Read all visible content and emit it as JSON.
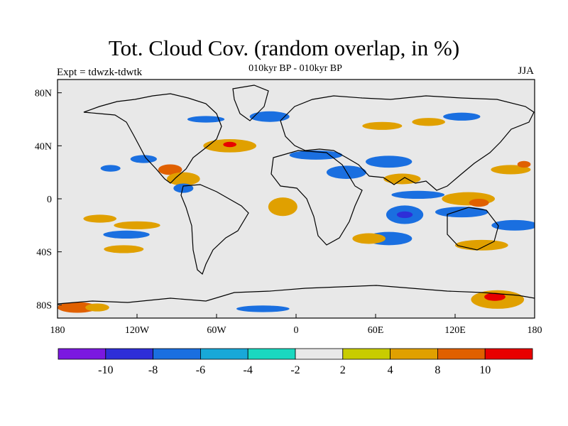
{
  "title": "Tot. Cloud Cov. (random overlap, in %)",
  "subtitle": "010kyr BP - 010kyr BP",
  "expt": "Expt = tdwzk-tdwtk",
  "season": "JJA",
  "map": {
    "background_color": "#e8e8e8",
    "lon_range": [
      -180,
      180
    ],
    "lat_range": [
      -90,
      90
    ],
    "x_ticks": [
      {
        "lon": -180,
        "label": "180"
      },
      {
        "lon": -120,
        "label": "120W"
      },
      {
        "lon": -60,
        "label": "60W"
      },
      {
        "lon": 0,
        "label": "0"
      },
      {
        "lon": 60,
        "label": "60E"
      },
      {
        "lon": 120,
        "label": "120E"
      },
      {
        "lon": 180,
        "label": "180"
      }
    ],
    "y_ticks": [
      {
        "lat": 80,
        "label": "80N"
      },
      {
        "lat": 40,
        "label": "40N"
      },
      {
        "lat": 0,
        "label": "0"
      },
      {
        "lat": -40,
        "label": "40S"
      },
      {
        "lat": -80,
        "label": "80S"
      }
    ]
  },
  "colorbar": {
    "colors": [
      "#7b18e0",
      "#2e2ed8",
      "#1a6fe0",
      "#18a8d8",
      "#1ad8c0",
      "#e8e8e8",
      "#c8cc00",
      "#e0a000",
      "#e06000",
      "#e80000"
    ],
    "labels": [
      "-10",
      "-8",
      "-6",
      "-4",
      "-2",
      "2",
      "4",
      "8",
      "10"
    ]
  },
  "chart_data": {
    "type": "heatmap",
    "title": "Tot. Cloud Cov. (random overlap, in %)",
    "subtitle": "010kyr BP - 010kyr BP",
    "levels": [
      -10,
      -8,
      -6,
      -4,
      -2,
      2,
      4,
      8,
      10
    ],
    "xlim": [
      -180,
      180
    ],
    "ylim": [
      -90,
      90
    ],
    "anomaly_patches": [
      {
        "lon": -165,
        "lat": -82,
        "w": 30,
        "h": 8,
        "level": 3
      },
      {
        "lon": -150,
        "lat": -82,
        "w": 18,
        "h": 6,
        "level": 2
      },
      {
        "lon": 152,
        "lat": -76,
        "w": 40,
        "h": 14,
        "level": 2
      },
      {
        "lon": 150,
        "lat": -74,
        "w": 16,
        "h": 6,
        "level": 4
      },
      {
        "lon": -25,
        "lat": -83,
        "w": 40,
        "h": 5,
        "level": -3
      },
      {
        "lon": -120,
        "lat": -20,
        "w": 35,
        "h": 6,
        "level": 2
      },
      {
        "lon": -128,
        "lat": -27,
        "w": 35,
        "h": 6,
        "level": -3
      },
      {
        "lon": -130,
        "lat": -38,
        "w": 30,
        "h": 6,
        "level": 2
      },
      {
        "lon": -148,
        "lat": -15,
        "w": 25,
        "h": 6,
        "level": 2
      },
      {
        "lon": -140,
        "lat": 23,
        "w": 15,
        "h": 5,
        "level": -3
      },
      {
        "lon": -115,
        "lat": 30,
        "w": 20,
        "h": 6,
        "level": -3
      },
      {
        "lon": -95,
        "lat": 22,
        "w": 18,
        "h": 8,
        "level": 3
      },
      {
        "lon": -85,
        "lat": 15,
        "w": 25,
        "h": 10,
        "level": 2
      },
      {
        "lon": -85,
        "lat": 8,
        "w": 15,
        "h": 7,
        "level": -3
      },
      {
        "lon": -50,
        "lat": 40,
        "w": 40,
        "h": 10,
        "level": 2
      },
      {
        "lon": -50,
        "lat": 41,
        "w": 10,
        "h": 4,
        "level": 4
      },
      {
        "lon": -68,
        "lat": 60,
        "w": 28,
        "h": 5,
        "level": -3
      },
      {
        "lon": -20,
        "lat": 62,
        "w": 30,
        "h": 8,
        "level": -3
      },
      {
        "lon": -10,
        "lat": -6,
        "w": 22,
        "h": 14,
        "level": 2
      },
      {
        "lon": 38,
        "lat": 20,
        "w": 30,
        "h": 10,
        "level": -3
      },
      {
        "lon": 15,
        "lat": 33,
        "w": 40,
        "h": 7,
        "level": -3
      },
      {
        "lon": 70,
        "lat": 28,
        "w": 35,
        "h": 9,
        "level": -3
      },
      {
        "lon": 80,
        "lat": 15,
        "w": 28,
        "h": 8,
        "level": 2
      },
      {
        "lon": 92,
        "lat": 3,
        "w": 40,
        "h": 6,
        "level": -3
      },
      {
        "lon": 82,
        "lat": -12,
        "w": 28,
        "h": 14,
        "level": -3
      },
      {
        "lon": 82,
        "lat": -12,
        "w": 12,
        "h": 5,
        "level": -4
      },
      {
        "lon": 70,
        "lat": -30,
        "w": 35,
        "h": 10,
        "level": -3
      },
      {
        "lon": 55,
        "lat": -30,
        "w": 25,
        "h": 8,
        "level": 2
      },
      {
        "lon": 130,
        "lat": 0,
        "w": 40,
        "h": 10,
        "level": 2
      },
      {
        "lon": 138,
        "lat": -3,
        "w": 15,
        "h": 6,
        "level": 3
      },
      {
        "lon": 125,
        "lat": -10,
        "w": 40,
        "h": 8,
        "level": -3
      },
      {
        "lon": 162,
        "lat": 22,
        "w": 30,
        "h": 7,
        "level": 2
      },
      {
        "lon": 172,
        "lat": 26,
        "w": 10,
        "h": 5,
        "level": 3
      },
      {
        "lon": 165,
        "lat": -20,
        "w": 35,
        "h": 8,
        "level": -3
      },
      {
        "lon": 140,
        "lat": -35,
        "w": 40,
        "h": 8,
        "level": 2
      },
      {
        "lon": 65,
        "lat": 55,
        "w": 30,
        "h": 6,
        "level": 2
      },
      {
        "lon": 100,
        "lat": 58,
        "w": 25,
        "h": 6,
        "level": 2
      },
      {
        "lon": 125,
        "lat": 62,
        "w": 28,
        "h": 6,
        "level": -3
      }
    ]
  }
}
